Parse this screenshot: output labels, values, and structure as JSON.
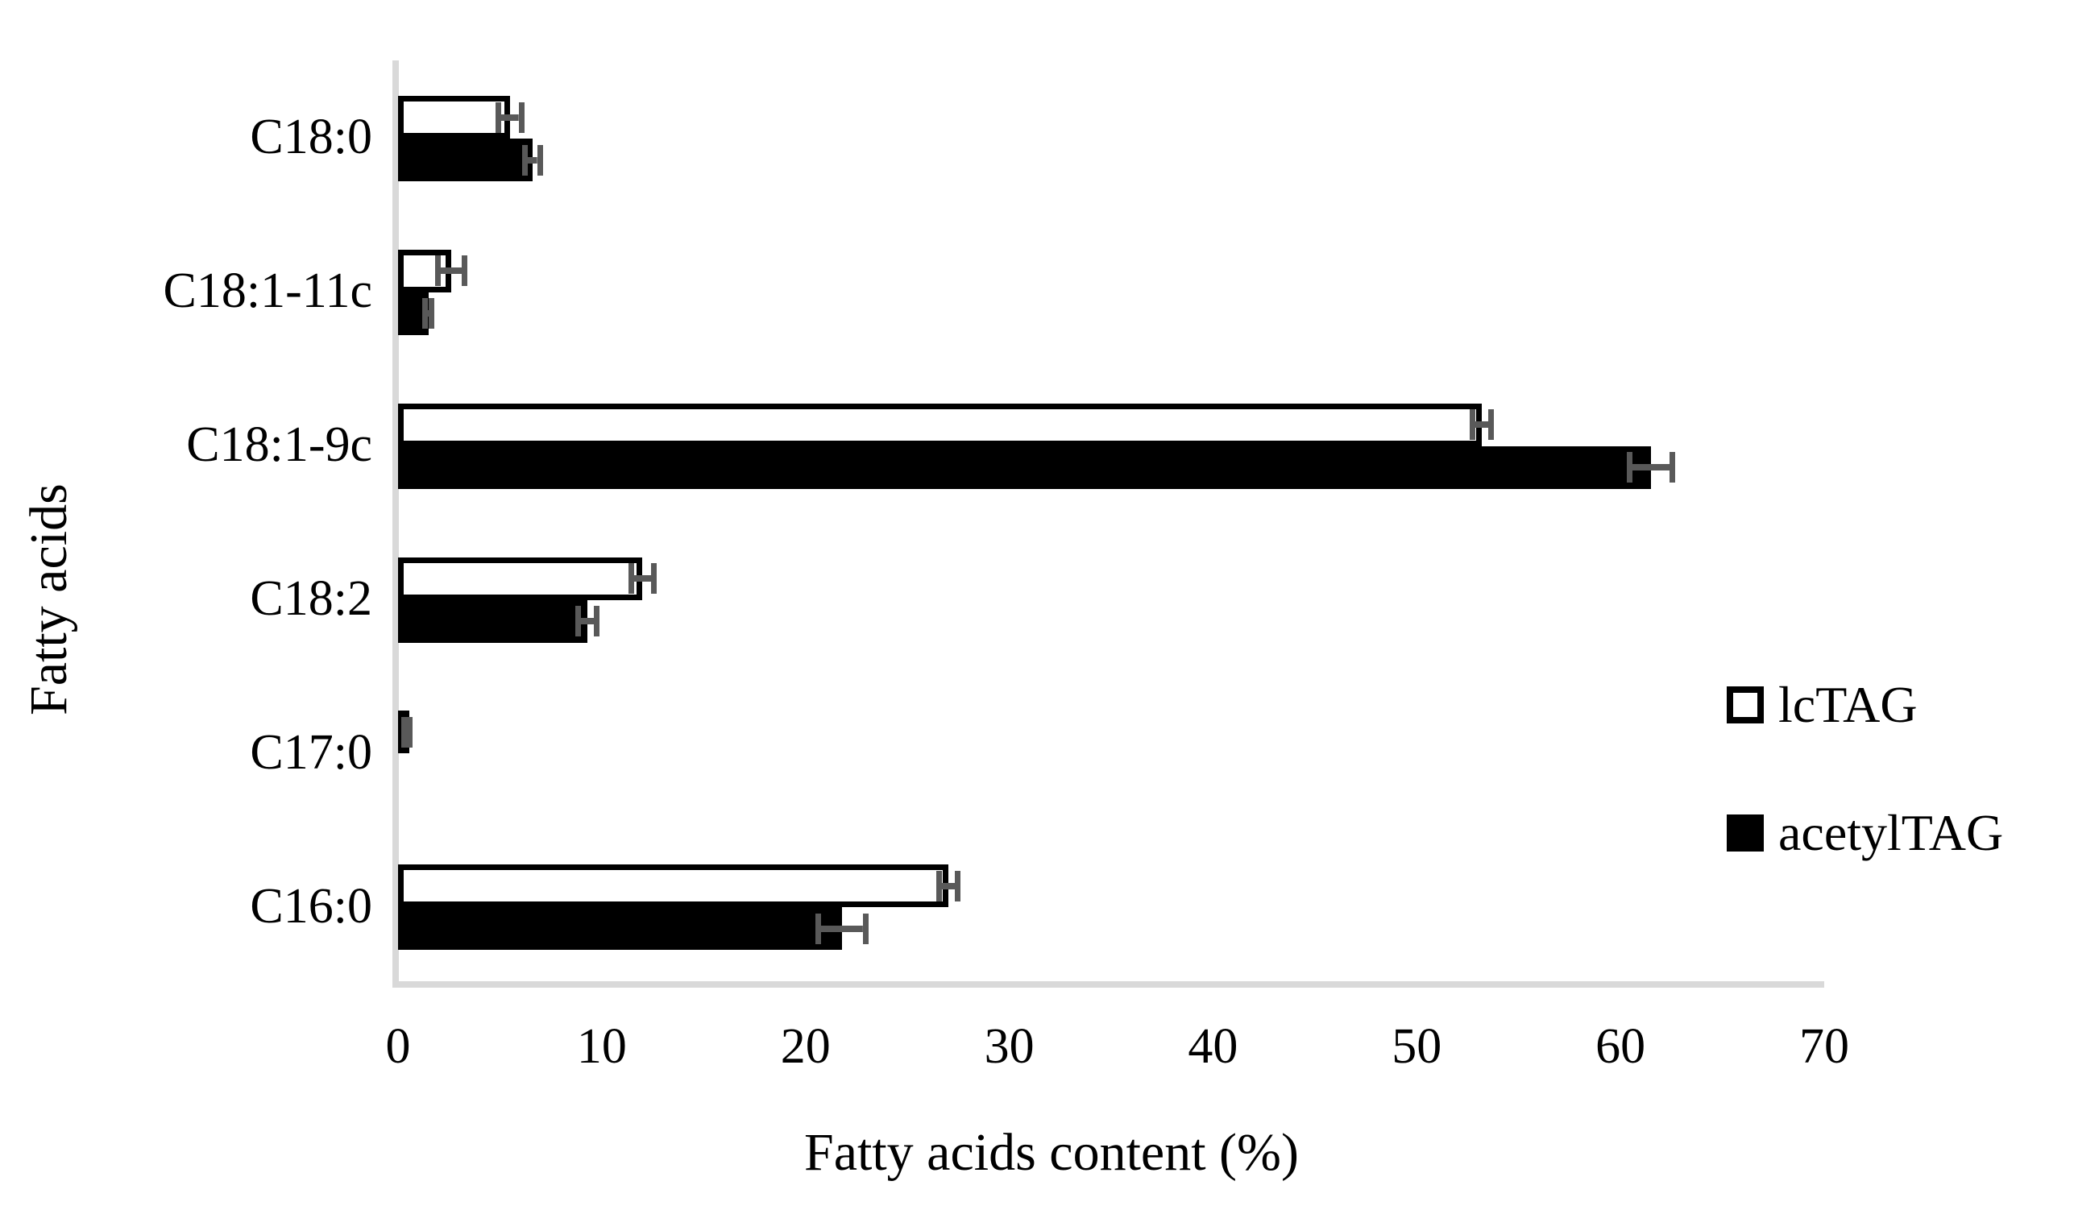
{
  "colors": {
    "axis_line": "#d9d9d9",
    "error_bar": "#595959",
    "bar_outline": "#000000",
    "bar_white_fill": "#ffffff",
    "bar_black_fill": "#000000",
    "text": "#000000",
    "background": "#ffffff"
  },
  "chart_data": {
    "type": "bar",
    "orientation": "horizontal",
    "title": "",
    "xlabel": "Fatty acids content (%)",
    "ylabel": "Fatty acids",
    "categories": [
      "C18:0",
      "C18:1-11c",
      "C18:1-9c",
      "C18:2",
      "C17:0",
      "C16:0"
    ],
    "category_order": "top-to-bottom",
    "series": [
      {
        "name": "lcTAG",
        "style": "white",
        "values": [
          5.5,
          2.6,
          53.2,
          12.0,
          0.3,
          27.0
        ],
        "errors": [
          0.7,
          0.8,
          0.6,
          0.7,
          0.15,
          0.6
        ]
      },
      {
        "name": "acetylTAG",
        "style": "black",
        "values": [
          6.6,
          1.5,
          61.5,
          9.3,
          0,
          21.8
        ],
        "errors": [
          0.5,
          0.3,
          1.2,
          0.6,
          0,
          1.3
        ]
      }
    ],
    "xlim": [
      0,
      70
    ],
    "xticks": [
      0,
      10,
      20,
      30,
      40,
      50,
      60,
      70
    ],
    "grid": false,
    "error_bars": "both-sides",
    "legend_position": "right"
  }
}
